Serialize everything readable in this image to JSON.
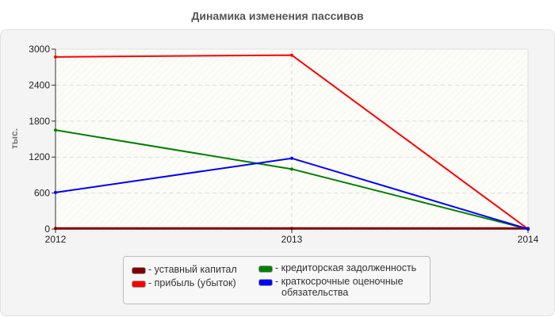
{
  "title": "Динамика изменения пассивов",
  "chart_data": {
    "type": "line",
    "title": "Динамика изменения пассивов",
    "xlabel": "",
    "ylabel": "тыс.",
    "x": [
      "2012",
      "2013",
      "2014"
    ],
    "ylim": [
      0,
      3000
    ],
    "yticks": [
      0,
      600,
      1200,
      1800,
      2400,
      3000
    ],
    "grid": true,
    "legend_position": "bottom",
    "series": [
      {
        "name": "уставный капитал",
        "color": "#800000",
        "values": [
          10,
          10,
          10
        ]
      },
      {
        "name": "прибыль (убыток)",
        "color": "#ff0000",
        "values": [
          2870,
          2900,
          0
        ]
      },
      {
        "name": "кредиторская задолженность",
        "color": "#008000",
        "values": [
          1650,
          1000,
          0
        ]
      },
      {
        "name": "краткосрочные оценочные обязательства",
        "color": "#0000ff",
        "values": [
          610,
          1180,
          0
        ]
      }
    ]
  },
  "legend": {
    "items": [
      {
        "label": "- уставный капитал",
        "color": "#800000"
      },
      {
        "label": "- прибыль (убыток)",
        "color": "#ff0000"
      },
      {
        "label": "- кредиторская задолженность",
        "color": "#008000"
      },
      {
        "label": "- краткосрочные оценочные",
        "label2": "обязательства",
        "color": "#0000ff"
      }
    ]
  }
}
